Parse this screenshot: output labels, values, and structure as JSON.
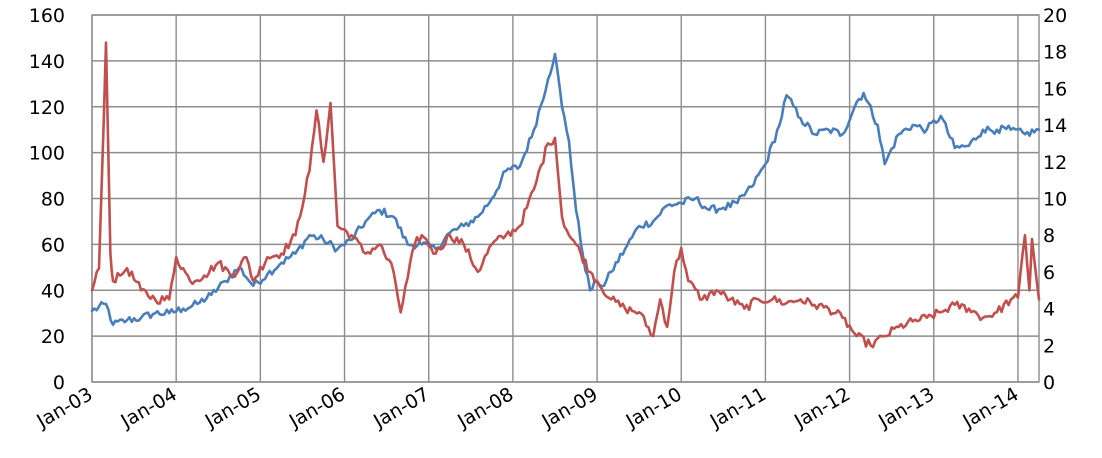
{
  "chart_data": {
    "type": "line",
    "title": "",
    "xlabel": "",
    "ylabel": "",
    "y2label": "",
    "grid": true,
    "legend": "none",
    "x_tick_labels": [
      "Jan-03",
      "Jan-04",
      "Jan-05",
      "Jan-06",
      "Jan-07",
      "Jan-08",
      "Jan-09",
      "Jan-10",
      "Jan-11",
      "Jan-12",
      "Jan-13",
      "Jan-14"
    ],
    "x_range": [
      "2003-01",
      "2014-04"
    ],
    "ylim": [
      0,
      160
    ],
    "yticks": [
      0,
      20,
      40,
      60,
      80,
      100,
      120,
      140,
      160
    ],
    "y2lim": [
      0,
      20
    ],
    "y2ticks": [
      0,
      2,
      4,
      6,
      8,
      10,
      12,
      14,
      16,
      18,
      20
    ],
    "series": [
      {
        "axis": "left",
        "color": "#4a7ebb",
        "points": [
          [
            "2003-01",
            31
          ],
          [
            "2003-03",
            34
          ],
          [
            "2003-04",
            25
          ],
          [
            "2003-06",
            27
          ],
          [
            "2003-08",
            28
          ],
          [
            "2003-10",
            30
          ],
          [
            "2003-12",
            30
          ],
          [
            "2004-02",
            32
          ],
          [
            "2004-04",
            34
          ],
          [
            "2004-06",
            38
          ],
          [
            "2004-08",
            44
          ],
          [
            "2004-10",
            50
          ],
          [
            "2004-12",
            42
          ],
          [
            "2005-02",
            47
          ],
          [
            "2005-04",
            52
          ],
          [
            "2005-06",
            56
          ],
          [
            "2005-08",
            64
          ],
          [
            "2005-10",
            62
          ],
          [
            "2005-12",
            58
          ],
          [
            "2006-02",
            62
          ],
          [
            "2006-04",
            70
          ],
          [
            "2006-06",
            75
          ],
          [
            "2006-08",
            72
          ],
          [
            "2006-10",
            60
          ],
          [
            "2006-12",
            60
          ],
          [
            "2007-02",
            58
          ],
          [
            "2007-04",
            65
          ],
          [
            "2007-06",
            68
          ],
          [
            "2007-08",
            72
          ],
          [
            "2007-10",
            80
          ],
          [
            "2007-12",
            92
          ],
          [
            "2008-02",
            94
          ],
          [
            "2008-04",
            110
          ],
          [
            "2008-06",
            132
          ],
          [
            "2008-07",
            143
          ],
          [
            "2008-08",
            120
          ],
          [
            "2008-09",
            105
          ],
          [
            "2008-10",
            75
          ],
          [
            "2008-11",
            55
          ],
          [
            "2008-12",
            40
          ],
          [
            "2009-01",
            44
          ],
          [
            "2009-02",
            42
          ],
          [
            "2009-03",
            48
          ],
          [
            "2009-05",
            58
          ],
          [
            "2009-07",
            68
          ],
          [
            "2009-09",
            70
          ],
          [
            "2009-11",
            77
          ],
          [
            "2010-01",
            78
          ],
          [
            "2010-03",
            80
          ],
          [
            "2010-05",
            75
          ],
          [
            "2010-07",
            76
          ],
          [
            "2010-09",
            78
          ],
          [
            "2010-11",
            85
          ],
          [
            "2011-01",
            95
          ],
          [
            "2011-03",
            112
          ],
          [
            "2011-04",
            125
          ],
          [
            "2011-06",
            115
          ],
          [
            "2011-08",
            108
          ],
          [
            "2011-10",
            110
          ],
          [
            "2011-12",
            108
          ],
          [
            "2012-02",
            122
          ],
          [
            "2012-03",
            126
          ],
          [
            "2012-05",
            112
          ],
          [
            "2012-06",
            95
          ],
          [
            "2012-08",
            108
          ],
          [
            "2012-10",
            112
          ],
          [
            "2012-12",
            110
          ],
          [
            "2013-02",
            116
          ],
          [
            "2013-04",
            102
          ],
          [
            "2013-06",
            103
          ],
          [
            "2013-08",
            110
          ],
          [
            "2013-10",
            110
          ],
          [
            "2013-12",
            110
          ],
          [
            "2014-02",
            108
          ],
          [
            "2014-04",
            110
          ]
        ]
      },
      {
        "axis": "right",
        "color": "#c0504d",
        "points": [
          [
            "2003-01",
            5.0
          ],
          [
            "2003-02",
            6.2
          ],
          [
            "2003-03",
            18.5
          ],
          [
            "2003-03-20",
            7.0
          ],
          [
            "2003-04",
            5.5
          ],
          [
            "2003-05",
            5.8
          ],
          [
            "2003-06",
            6.2
          ],
          [
            "2003-08",
            5.0
          ],
          [
            "2003-10",
            4.5
          ],
          [
            "2003-12",
            4.5
          ],
          [
            "2004-01",
            6.8
          ],
          [
            "2004-03",
            5.5
          ],
          [
            "2004-05",
            5.8
          ],
          [
            "2004-07",
            6.5
          ],
          [
            "2004-09",
            5.8
          ],
          [
            "2004-11",
            6.8
          ],
          [
            "2004-12",
            5.5
          ],
          [
            "2005-02",
            6.8
          ],
          [
            "2005-04",
            7.0
          ],
          [
            "2005-06",
            8.0
          ],
          [
            "2005-08",
            11.5
          ],
          [
            "2005-09",
            14.8
          ],
          [
            "2005-10",
            12.0
          ],
          [
            "2005-11",
            15.2
          ],
          [
            "2005-12",
            8.5
          ],
          [
            "2006-02",
            8.0
          ],
          [
            "2006-04",
            7.0
          ],
          [
            "2006-06",
            7.5
          ],
          [
            "2006-08",
            6.0
          ],
          [
            "2006-09",
            3.8
          ],
          [
            "2006-11",
            7.5
          ],
          [
            "2006-12",
            8.0
          ],
          [
            "2007-02",
            7.0
          ],
          [
            "2007-04",
            8.0
          ],
          [
            "2007-06",
            7.5
          ],
          [
            "2007-08",
            6.0
          ],
          [
            "2007-10",
            7.5
          ],
          [
            "2007-12",
            8.0
          ],
          [
            "2008-02",
            8.5
          ],
          [
            "2008-04",
            10.5
          ],
          [
            "2008-06",
            13.0
          ],
          [
            "2008-07",
            13.3
          ],
          [
            "2008-08",
            9.0
          ],
          [
            "2008-09",
            8.0
          ],
          [
            "2008-10",
            7.5
          ],
          [
            "2008-12",
            6.0
          ],
          [
            "2009-01",
            5.5
          ],
          [
            "2009-03",
            4.5
          ],
          [
            "2009-05",
            4.0
          ],
          [
            "2009-07",
            3.8
          ],
          [
            "2009-09",
            2.5
          ],
          [
            "2009-10",
            4.5
          ],
          [
            "2009-11",
            3.0
          ],
          [
            "2009-12",
            6.0
          ],
          [
            "2010-01",
            7.3
          ],
          [
            "2010-02",
            5.5
          ],
          [
            "2010-04",
            4.5
          ],
          [
            "2010-06",
            5.0
          ],
          [
            "2010-08",
            4.5
          ],
          [
            "2010-10",
            4.0
          ],
          [
            "2010-12",
            4.5
          ],
          [
            "2011-02",
            4.5
          ],
          [
            "2011-04",
            4.3
          ],
          [
            "2011-06",
            4.5
          ],
          [
            "2011-08",
            4.2
          ],
          [
            "2011-10",
            4.0
          ],
          [
            "2011-12",
            3.5
          ],
          [
            "2012-02",
            2.5
          ],
          [
            "2012-04",
            2.0
          ],
          [
            "2012-06",
            2.5
          ],
          [
            "2012-08",
            3.0
          ],
          [
            "2012-10",
            3.3
          ],
          [
            "2012-12",
            3.5
          ],
          [
            "2013-02",
            3.8
          ],
          [
            "2013-04",
            4.2
          ],
          [
            "2013-06",
            4.0
          ],
          [
            "2013-08",
            3.5
          ],
          [
            "2013-10",
            3.8
          ],
          [
            "2013-12",
            4.5
          ],
          [
            "2014-01",
            4.6
          ],
          [
            "2014-02",
            8.0
          ],
          [
            "2014-02-20",
            5.0
          ],
          [
            "2014-03",
            7.8
          ],
          [
            "2014-04",
            4.5
          ]
        ]
      }
    ]
  }
}
